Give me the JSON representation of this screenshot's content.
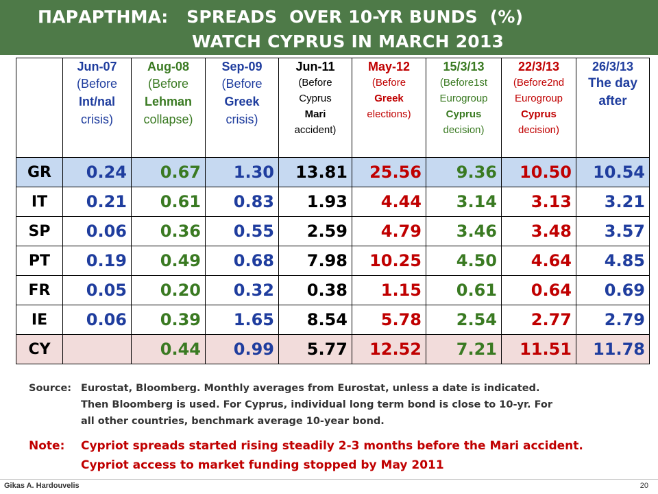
{
  "title": {
    "line1": "ΠΑΡΑΡΤΗΜΑ:   SPREADS  OVER 10-YR BUNDS  (%)",
    "line2": "WATCH CYPRUS IN MARCH 2013"
  },
  "colors": {
    "banner": "#4e7a48",
    "blue": "#1f3d9e",
    "green": "#3a7a22",
    "red": "#c00000",
    "gr_row": "#c6d9f1",
    "cy_row": "#f2dcdb"
  },
  "table": {
    "columns": [
      {
        "date": "Jun-07",
        "desc": [
          "(Before",
          "Int/nal",
          "crisis)"
        ]
      },
      {
        "date": "Aug-08",
        "desc": [
          "(Before",
          "Lehman",
          "collapse)"
        ]
      },
      {
        "date": "Sep-09",
        "desc": [
          "(Before",
          "Greek",
          "crisis)"
        ]
      },
      {
        "date": "Jun-11",
        "desc": [
          "(Before",
          "Cyprus",
          "Mari",
          "accident)"
        ]
      },
      {
        "date": "May-12",
        "desc": [
          "(Before",
          "Greek",
          "elections)"
        ]
      },
      {
        "date": "15/3/13",
        "desc": [
          "(Before1st",
          "Eurogroup",
          "Cyprus",
          "decision)"
        ]
      },
      {
        "date": "22/3/13",
        "desc": [
          "(Before2nd",
          "Eurogroup",
          "Cyprus",
          "decision)"
        ]
      },
      {
        "date": "26/3/13",
        "desc": [
          "The day",
          "after"
        ]
      }
    ],
    "rows": [
      {
        "country": "GR",
        "values": [
          "0.24",
          "0.67",
          "1.30",
          "13.81",
          "25.56",
          "9.36",
          "10.50",
          "10.54"
        ]
      },
      {
        "country": "IT",
        "values": [
          "0.21",
          "0.61",
          "0.83",
          "1.93",
          "4.44",
          "3.14",
          "3.13",
          "3.21"
        ]
      },
      {
        "country": "SP",
        "values": [
          "0.06",
          "0.36",
          "0.55",
          "2.59",
          "4.79",
          "3.46",
          "3.48",
          "3.57"
        ]
      },
      {
        "country": "PT",
        "values": [
          "0.19",
          "0.49",
          "0.68",
          "7.98",
          "10.25",
          "4.50",
          "4.64",
          "4.85"
        ]
      },
      {
        "country": "FR",
        "values": [
          "0.05",
          "0.20",
          "0.32",
          "0.38",
          "1.15",
          "0.61",
          "0.64",
          "0.69"
        ]
      },
      {
        "country": "IE",
        "values": [
          "0.06",
          "0.39",
          "1.65",
          "8.54",
          "5.78",
          "2.54",
          "2.77",
          "2.79"
        ]
      },
      {
        "country": "CY",
        "values": [
          "",
          "0.44",
          "0.99",
          "5.77",
          "12.52",
          "7.21",
          "11.51",
          "11.78"
        ]
      }
    ]
  },
  "source": {
    "label": "Source:",
    "lines": [
      "Eurostat, Bloomberg. Monthly averages from Eurostat, unless a date is indicated.",
      "Then Bloomberg is used. For Cyprus, individual long term bond is close to 10-yr.  For",
      "all other countries, benchmark average 10-year bond."
    ]
  },
  "note": {
    "label": "Note:",
    "lines": [
      "Cypriot spreads started rising steadily 2-3 months before the Mari accident.",
      "Cypriot access to market  funding stopped by May 2011"
    ]
  },
  "footer": {
    "author": "Gikas A. Hardouvelis",
    "page": "20"
  }
}
